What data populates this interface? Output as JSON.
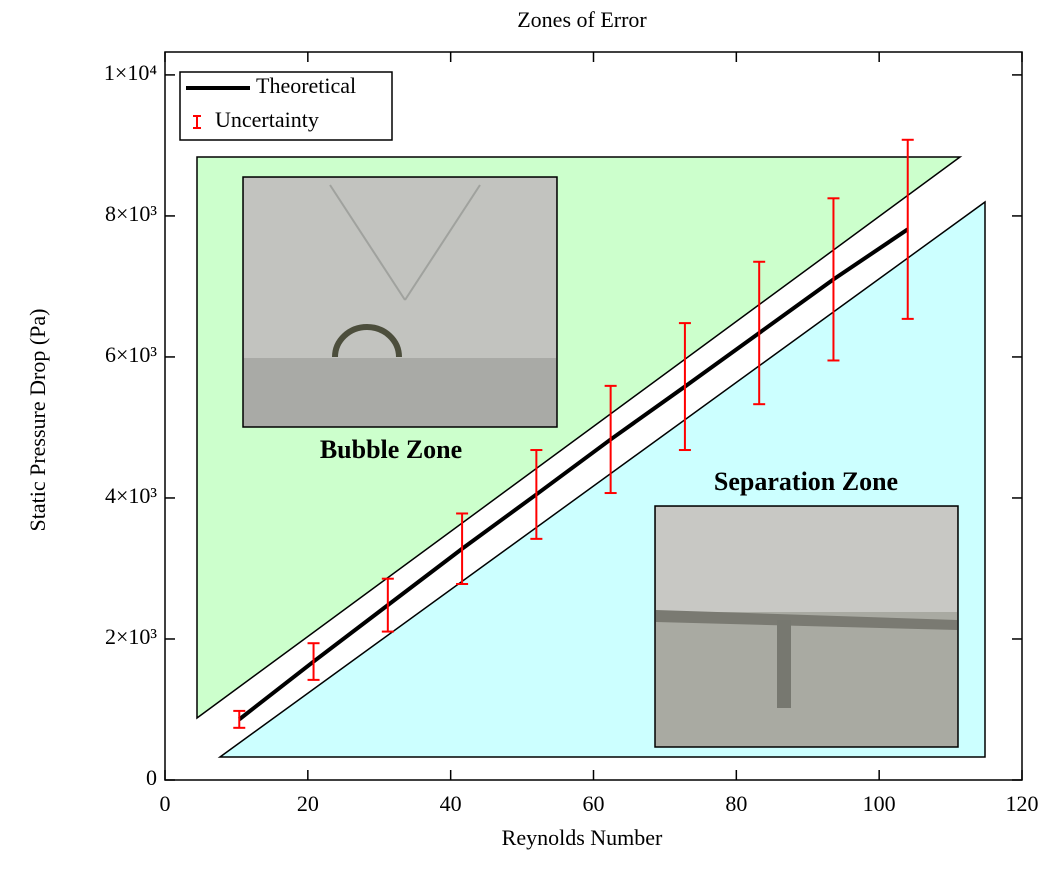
{
  "chart_data": {
    "type": "line",
    "title": "Zones of Error",
    "xlabel": "Reynolds Number",
    "ylabel": "Static Pressure Drop (Pa)",
    "x": [
      10.4,
      20.8,
      31.2,
      41.6,
      52,
      62.4,
      72.8,
      83.2,
      93.6,
      104
    ],
    "series": [
      {
        "name": "Theoretical",
        "color": "#000000",
        "values": [
          860,
          1680,
          2480,
          3280,
          4050,
          4830,
          5580,
          6340,
          7100,
          7810
        ]
      },
      {
        "name": "Uncertainty",
        "color": "#ff0000",
        "values": [
          860,
          1680,
          2480,
          3280,
          4050,
          4830,
          5580,
          6340,
          7100,
          7810
        ],
        "errors": [
          120,
          260,
          375,
          500,
          630,
          760,
          900,
          1010,
          1150,
          1270
        ]
      }
    ],
    "xlim": [
      0,
      120
    ],
    "xticks": [
      0,
      20,
      40,
      60,
      80,
      100,
      120
    ],
    "ylim": [
      0,
      10325
    ],
    "yticks": [
      0,
      {
        "value": 2000,
        "label": "2×10³"
      },
      {
        "value": 4000,
        "label": "4×10³"
      },
      {
        "value": 6000,
        "label": "6×10³"
      },
      {
        "value": 8000,
        "label": "8×10³"
      },
      {
        "value": 10000,
        "label": "1×10⁴"
      }
    ],
    "annotations": [
      "Bubble Zone",
      "Separation Zone"
    ],
    "legend": "upper left"
  }
}
